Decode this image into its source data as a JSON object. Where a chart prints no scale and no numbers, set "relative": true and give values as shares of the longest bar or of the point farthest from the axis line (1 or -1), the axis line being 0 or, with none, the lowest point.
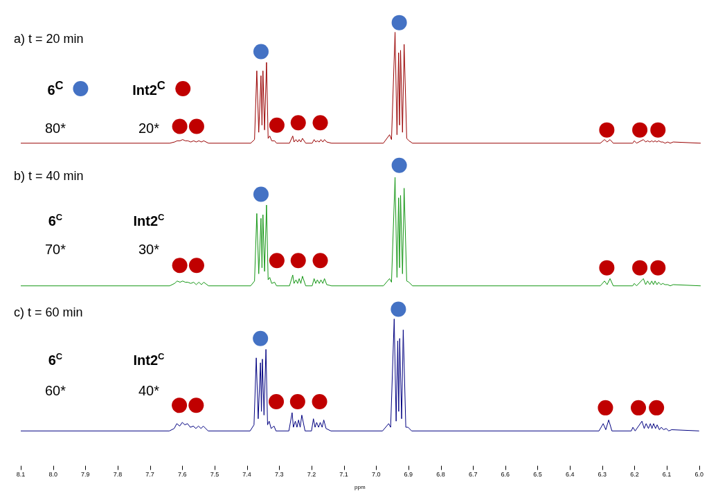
{
  "chart_data": [
    {
      "type": "line",
      "relative": true,
      "xlim": [
        8.1,
        6.0
      ],
      "tick_labels": false,
      "grid": false,
      "legend": "left",
      "annotations": [
        "a) t = 20 min",
        "80*",
        "20*"
      ],
      "x": [
        8.1,
        7.64,
        7.625,
        7.617,
        7.608,
        7.6,
        7.592,
        7.584,
        7.575,
        7.566,
        7.558,
        7.55,
        7.542,
        7.535,
        7.52,
        7.39,
        7.378,
        7.371,
        7.365,
        7.358,
        7.355,
        7.352,
        7.347,
        7.341,
        7.336,
        7.331,
        7.325,
        7.316,
        7.31,
        7.27,
        7.26,
        7.256,
        7.25,
        7.245,
        7.24,
        7.235,
        7.23,
        7.22,
        7.2,
        7.194,
        7.189,
        7.184,
        7.178,
        7.173,
        7.167,
        7.162,
        7.155,
        7.14,
        6.98,
        6.961,
        6.955,
        6.944,
        6.938,
        6.933,
        6.93,
        6.927,
        6.921,
        6.916,
        6.908,
        6.901,
        6.89,
        6.31,
        6.297,
        6.289,
        6.28,
        6.27,
        6.21,
        6.205,
        6.198,
        6.177,
        6.17,
        6.164,
        6.157,
        6.151,
        6.146,
        6.141,
        6.135,
        6.13,
        6.123,
        6.117,
        6.11,
        6.102,
        6.094,
        6.085,
        6.0
      ],
      "series": [
        {
          "color": "#990000",
          "values": [
            0,
            0,
            0.01,
            0.02,
            0.02,
            0.03,
            0.02,
            0.02,
            0.01,
            0.02,
            0.01,
            0.02,
            0.01,
            0.02,
            0,
            0,
            0.03,
            0.6,
            0.09,
            0.56,
            0.15,
            0.6,
            0.11,
            0.67,
            0.04,
            0.06,
            0.02,
            0.02,
            0,
            0,
            0.06,
            0.01,
            0.03,
            0.01,
            0.03,
            0.01,
            0.04,
            0,
            0,
            0.03,
            0.01,
            0.02,
            0.01,
            0.03,
            0.01,
            0.03,
            0.01,
            0,
            0,
            0.07,
            0.03,
            0.92,
            0.07,
            0.75,
            0.15,
            0.77,
            0.09,
            0.82,
            0.04,
            0.02,
            0,
            0,
            0.03,
            0.01,
            0.03,
            0,
            0,
            0.02,
            0,
            0.03,
            0.01,
            0.02,
            0.01,
            0.02,
            0.01,
            0.02,
            0.01,
            0.02,
            0.01,
            0.01,
            0,
            0.01,
            0,
            0.01,
            0
          ]
        },
        {
          "type": "scatter",
          "name": "6$^{C}$",
          "color": "#4472c4",
          "x": [
            7.358,
            6.931
          ],
          "values": [
            0.76,
            1.0
          ]
        },
        {
          "type": "scatter",
          "name": "Int2$^{C}$",
          "color": "#c00000",
          "x": [
            7.609,
            7.557,
            7.309,
            7.243,
            7.175,
            6.29,
            6.188,
            6.132
          ],
          "values": [
            0.14,
            0.14,
            0.15,
            0.17,
            0.17,
            0.11,
            0.11,
            0.11
          ]
        }
      ]
    },
    {
      "type": "line",
      "relative": true,
      "xlim": [
        8.1,
        6.0
      ],
      "tick_labels": false,
      "grid": false,
      "legend": false,
      "annotations": [
        "b) t = 40 min",
        "6$^{C}$",
        "Int2$^{C}$",
        "70*",
        "30*"
      ],
      "x": [
        8.1,
        7.64,
        7.625,
        7.617,
        7.608,
        7.6,
        7.592,
        7.584,
        7.575,
        7.566,
        7.558,
        7.55,
        7.542,
        7.535,
        7.52,
        7.39,
        7.378,
        7.371,
        7.365,
        7.358,
        7.355,
        7.352,
        7.347,
        7.341,
        7.336,
        7.331,
        7.325,
        7.316,
        7.31,
        7.27,
        7.26,
        7.256,
        7.25,
        7.245,
        7.24,
        7.235,
        7.23,
        7.22,
        7.2,
        7.194,
        7.189,
        7.184,
        7.178,
        7.173,
        7.167,
        7.162,
        7.155,
        7.14,
        6.98,
        6.961,
        6.955,
        6.944,
        6.938,
        6.933,
        6.93,
        6.927,
        6.921,
        6.916,
        6.908,
        6.901,
        6.89,
        6.31,
        6.297,
        6.289,
        6.28,
        6.27,
        6.21,
        6.205,
        6.198,
        6.177,
        6.17,
        6.164,
        6.157,
        6.151,
        6.146,
        6.141,
        6.135,
        6.13,
        6.123,
        6.117,
        6.11,
        6.102,
        6.094,
        6.085,
        6.0
      ],
      "series": [
        {
          "color": "#139613",
          "values": [
            0,
            0,
            0.02,
            0.04,
            0.03,
            0.04,
            0.03,
            0.03,
            0.02,
            0.03,
            0.01,
            0.03,
            0.01,
            0.03,
            0,
            0,
            0.04,
            0.6,
            0.1,
            0.56,
            0.15,
            0.59,
            0.12,
            0.67,
            0.05,
            0.07,
            0.02,
            0.03,
            0,
            0,
            0.09,
            0.02,
            0.05,
            0.02,
            0.06,
            0.02,
            0.08,
            0,
            0,
            0.06,
            0.02,
            0.05,
            0.02,
            0.05,
            0.02,
            0.06,
            0.01,
            0,
            0,
            0.06,
            0.03,
            0.9,
            0.07,
            0.73,
            0.15,
            0.75,
            0.1,
            0.81,
            0.04,
            0.03,
            0,
            0,
            0.04,
            0.01,
            0.06,
            0,
            0,
            0.02,
            0,
            0.06,
            0.01,
            0.04,
            0.01,
            0.04,
            0.01,
            0.04,
            0.01,
            0.03,
            0.01,
            0.02,
            0.01,
            0.01,
            0,
            0.01,
            0
          ]
        },
        {
          "type": "scatter",
          "color": "#4472c4",
          "x": [
            7.358,
            6.931
          ],
          "values": [
            0.76,
            1.0
          ]
        },
        {
          "type": "scatter",
          "color": "#c00000",
          "x": [
            7.609,
            7.557,
            7.309,
            7.243,
            7.175,
            6.29,
            6.188,
            6.132
          ],
          "values": [
            0.17,
            0.17,
            0.21,
            0.21,
            0.21,
            0.15,
            0.15,
            0.15
          ]
        }
      ]
    },
    {
      "type": "line",
      "relative": true,
      "xlim": [
        8.1,
        6.0
      ],
      "tick_labels": "x",
      "grid": false,
      "legend": false,
      "xlabel": "ppm",
      "xticks": [
        8.1,
        {
          "value": 8,
          "label": "8.0"
        },
        7.9,
        7.8,
        7.7,
        7.6,
        7.5,
        7.4,
        7.3,
        7.2,
        7.1,
        {
          "value": 7,
          "label": "7.0"
        },
        6.9,
        6.8,
        6.7,
        6.6,
        6.5,
        6.4,
        6.3,
        6.2,
        6.1,
        {
          "value": 6,
          "label": "6.0"
        }
      ],
      "annotations": [
        "c) t = 60 min",
        "6$^{C}$",
        "Int2$^{C}$",
        "60*",
        "40*"
      ],
      "x": [
        8.1,
        7.64,
        7.625,
        7.617,
        7.608,
        7.6,
        7.592,
        7.584,
        7.575,
        7.566,
        7.558,
        7.55,
        7.542,
        7.535,
        7.52,
        7.39,
        7.378,
        7.371,
        7.365,
        7.358,
        7.355,
        7.352,
        7.347,
        7.341,
        7.336,
        7.331,
        7.325,
        7.316,
        7.31,
        7.27,
        7.26,
        7.256,
        7.25,
        7.245,
        7.24,
        7.235,
        7.23,
        7.22,
        7.2,
        7.194,
        7.189,
        7.184,
        7.178,
        7.173,
        7.167,
        7.162,
        7.155,
        7.14,
        6.98,
        6.961,
        6.955,
        6.944,
        6.938,
        6.933,
        6.93,
        6.927,
        6.921,
        6.916,
        6.908,
        6.901,
        6.89,
        6.31,
        6.297,
        6.289,
        6.28,
        6.27,
        6.21,
        6.205,
        6.198,
        6.177,
        6.17,
        6.164,
        6.157,
        6.151,
        6.146,
        6.141,
        6.135,
        6.13,
        6.123,
        6.117,
        6.11,
        6.102,
        6.094,
        6.085,
        6.0
      ],
      "series": [
        {
          "color": "#000080",
          "values": [
            0,
            0,
            0.02,
            0.06,
            0.04,
            0.07,
            0.05,
            0.06,
            0.03,
            0.04,
            0.02,
            0.04,
            0.02,
            0.04,
            0,
            0,
            0.05,
            0.6,
            0.1,
            0.56,
            0.16,
            0.59,
            0.13,
            0.67,
            0.05,
            0.08,
            0.02,
            0.04,
            0,
            0,
            0.15,
            0.03,
            0.08,
            0.03,
            0.09,
            0.03,
            0.13,
            0,
            0,
            0.1,
            0.03,
            0.07,
            0.03,
            0.07,
            0.03,
            0.09,
            0.02,
            0,
            0,
            0.06,
            0.03,
            0.92,
            0.08,
            0.74,
            0.16,
            0.76,
            0.1,
            0.83,
            0.03,
            0.03,
            0,
            0,
            0.06,
            0.01,
            0.09,
            0,
            0,
            0.03,
            0,
            0.08,
            0.02,
            0.06,
            0.02,
            0.06,
            0.02,
            0.06,
            0.02,
            0.05,
            0.01,
            0.03,
            0.01,
            0.02,
            0,
            0.01,
            0
          ]
        },
        {
          "type": "scatter",
          "color": "#4472c4",
          "x": [
            7.358,
            6.931
          ],
          "values": [
            0.76,
            1.0
          ]
        },
        {
          "type": "scatter",
          "color": "#c00000",
          "x": [
            7.609,
            7.557,
            7.309,
            7.243,
            7.175,
            6.29,
            6.188,
            6.132
          ],
          "values": [
            0.21,
            0.21,
            0.24,
            0.24,
            0.24,
            0.19,
            0.19,
            0.19
          ]
        }
      ]
    }
  ]
}
